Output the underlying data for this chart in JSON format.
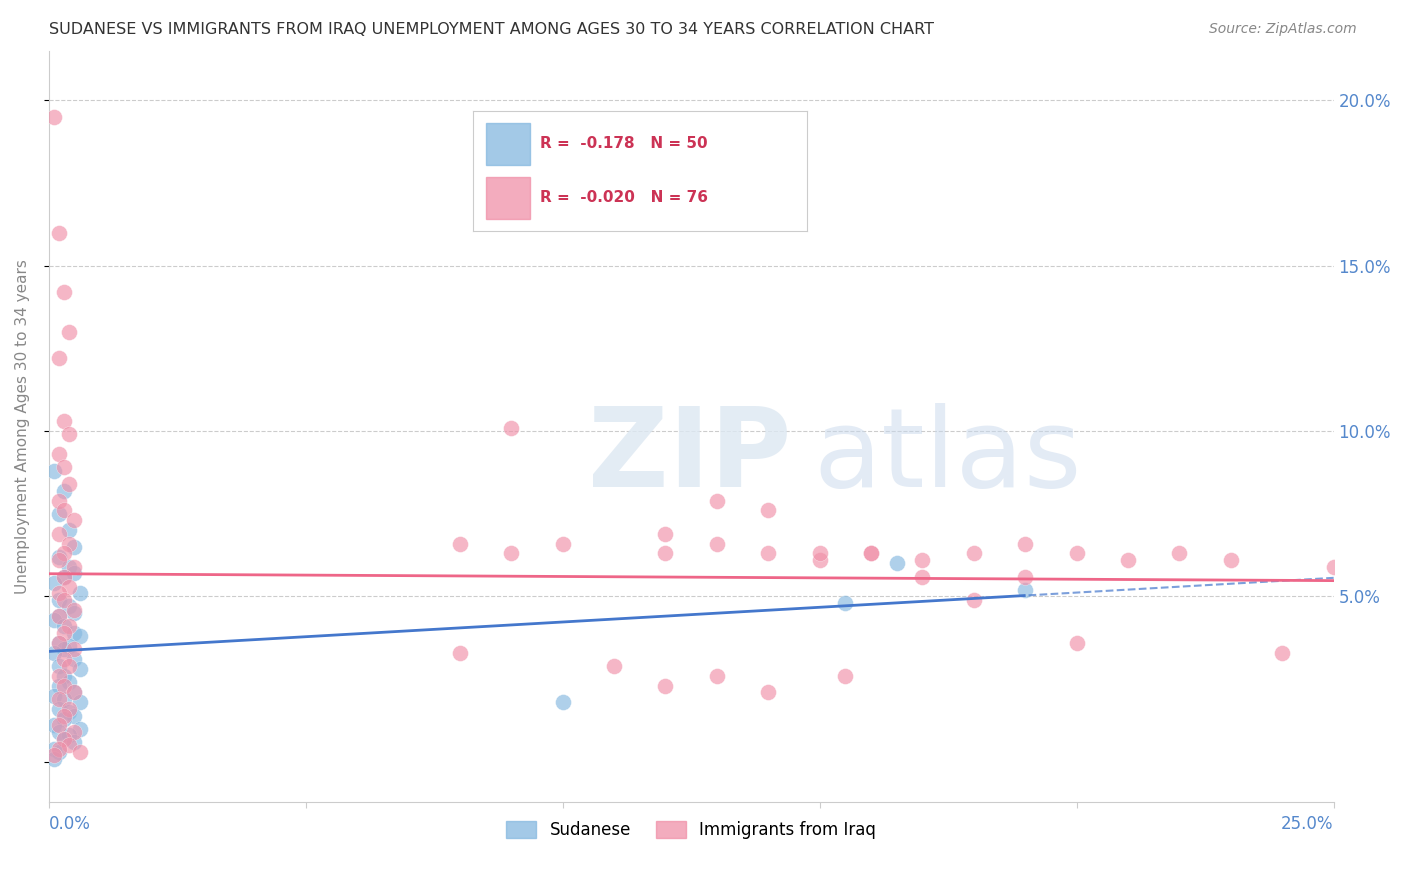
{
  "title": "SUDANESE VS IMMIGRANTS FROM IRAQ UNEMPLOYMENT AMONG AGES 30 TO 34 YEARS CORRELATION CHART",
  "source": "Source: ZipAtlas.com",
  "ylabel": "Unemployment Among Ages 30 to 34 years",
  "xmin": 0.0,
  "xmax": 0.25,
  "ymin": -0.012,
  "ymax": 0.215,
  "sudanese_color": "#85b8e0",
  "iraq_color": "#f090a8",
  "sudanese_line_color": "#4477cc",
  "iraq_line_color": "#ee6688",
  "sudanese_r": -0.178,
  "iraq_r": -0.02,
  "sudanese_n": 50,
  "iraq_n": 76,
  "sudanese_scatter": [
    [
      0.001,
      0.088
    ],
    [
      0.003,
      0.082
    ],
    [
      0.002,
      0.075
    ],
    [
      0.004,
      0.07
    ],
    [
      0.005,
      0.065
    ],
    [
      0.002,
      0.062
    ],
    [
      0.004,
      0.059
    ],
    [
      0.005,
      0.057
    ],
    [
      0.003,
      0.056
    ],
    [
      0.001,
      0.054
    ],
    [
      0.006,
      0.051
    ],
    [
      0.002,
      0.049
    ],
    [
      0.004,
      0.047
    ],
    [
      0.005,
      0.045
    ],
    [
      0.002,
      0.044
    ],
    [
      0.001,
      0.043
    ],
    [
      0.003,
      0.041
    ],
    [
      0.005,
      0.039
    ],
    [
      0.006,
      0.038
    ],
    [
      0.002,
      0.036
    ],
    [
      0.004,
      0.035
    ],
    [
      0.003,
      0.034
    ],
    [
      0.001,
      0.033
    ],
    [
      0.005,
      0.031
    ],
    [
      0.002,
      0.029
    ],
    [
      0.006,
      0.028
    ],
    [
      0.003,
      0.026
    ],
    [
      0.004,
      0.024
    ],
    [
      0.002,
      0.023
    ],
    [
      0.005,
      0.021
    ],
    [
      0.001,
      0.02
    ],
    [
      0.003,
      0.019
    ],
    [
      0.006,
      0.018
    ],
    [
      0.002,
      0.016
    ],
    [
      0.004,
      0.015
    ],
    [
      0.005,
      0.014
    ],
    [
      0.003,
      0.013
    ],
    [
      0.001,
      0.011
    ],
    [
      0.006,
      0.01
    ],
    [
      0.002,
      0.009
    ],
    [
      0.004,
      0.008
    ],
    [
      0.003,
      0.007
    ],
    [
      0.005,
      0.006
    ],
    [
      0.001,
      0.004
    ],
    [
      0.002,
      0.003
    ],
    [
      0.001,
      0.001
    ],
    [
      0.155,
      0.048
    ],
    [
      0.165,
      0.06
    ],
    [
      0.19,
      0.052
    ],
    [
      0.1,
      0.018
    ]
  ],
  "iraq_scatter": [
    [
      0.001,
      0.195
    ],
    [
      0.002,
      0.16
    ],
    [
      0.003,
      0.142
    ],
    [
      0.004,
      0.13
    ],
    [
      0.002,
      0.122
    ],
    [
      0.003,
      0.103
    ],
    [
      0.004,
      0.099
    ],
    [
      0.002,
      0.093
    ],
    [
      0.003,
      0.089
    ],
    [
      0.004,
      0.084
    ],
    [
      0.002,
      0.079
    ],
    [
      0.003,
      0.076
    ],
    [
      0.005,
      0.073
    ],
    [
      0.002,
      0.069
    ],
    [
      0.004,
      0.066
    ],
    [
      0.003,
      0.063
    ],
    [
      0.002,
      0.061
    ],
    [
      0.005,
      0.059
    ],
    [
      0.003,
      0.056
    ],
    [
      0.004,
      0.053
    ],
    [
      0.002,
      0.051
    ],
    [
      0.003,
      0.049
    ],
    [
      0.005,
      0.046
    ],
    [
      0.002,
      0.044
    ],
    [
      0.004,
      0.041
    ],
    [
      0.003,
      0.039
    ],
    [
      0.002,
      0.036
    ],
    [
      0.005,
      0.034
    ],
    [
      0.003,
      0.031
    ],
    [
      0.004,
      0.029
    ],
    [
      0.002,
      0.026
    ],
    [
      0.003,
      0.023
    ],
    [
      0.005,
      0.021
    ],
    [
      0.002,
      0.019
    ],
    [
      0.004,
      0.016
    ],
    [
      0.003,
      0.014
    ],
    [
      0.002,
      0.011
    ],
    [
      0.005,
      0.009
    ],
    [
      0.003,
      0.007
    ],
    [
      0.004,
      0.005
    ],
    [
      0.002,
      0.004
    ],
    [
      0.006,
      0.003
    ],
    [
      0.001,
      0.002
    ],
    [
      0.09,
      0.101
    ],
    [
      0.1,
      0.066
    ],
    [
      0.12,
      0.069
    ],
    [
      0.13,
      0.079
    ],
    [
      0.14,
      0.076
    ],
    [
      0.15,
      0.061
    ],
    [
      0.16,
      0.063
    ],
    [
      0.17,
      0.056
    ],
    [
      0.18,
      0.049
    ],
    [
      0.19,
      0.056
    ],
    [
      0.19,
      0.066
    ],
    [
      0.08,
      0.033
    ],
    [
      0.11,
      0.029
    ],
    [
      0.12,
      0.023
    ],
    [
      0.13,
      0.026
    ],
    [
      0.14,
      0.021
    ],
    [
      0.155,
      0.026
    ],
    [
      0.16,
      0.063
    ],
    [
      0.17,
      0.061
    ],
    [
      0.2,
      0.063
    ],
    [
      0.21,
      0.061
    ],
    [
      0.22,
      0.063
    ],
    [
      0.23,
      0.061
    ],
    [
      0.25,
      0.059
    ],
    [
      0.24,
      0.033
    ],
    [
      0.2,
      0.036
    ],
    [
      0.18,
      0.063
    ],
    [
      0.15,
      0.063
    ],
    [
      0.14,
      0.063
    ],
    [
      0.13,
      0.066
    ],
    [
      0.12,
      0.063
    ],
    [
      0.08,
      0.066
    ],
    [
      0.09,
      0.063
    ]
  ]
}
